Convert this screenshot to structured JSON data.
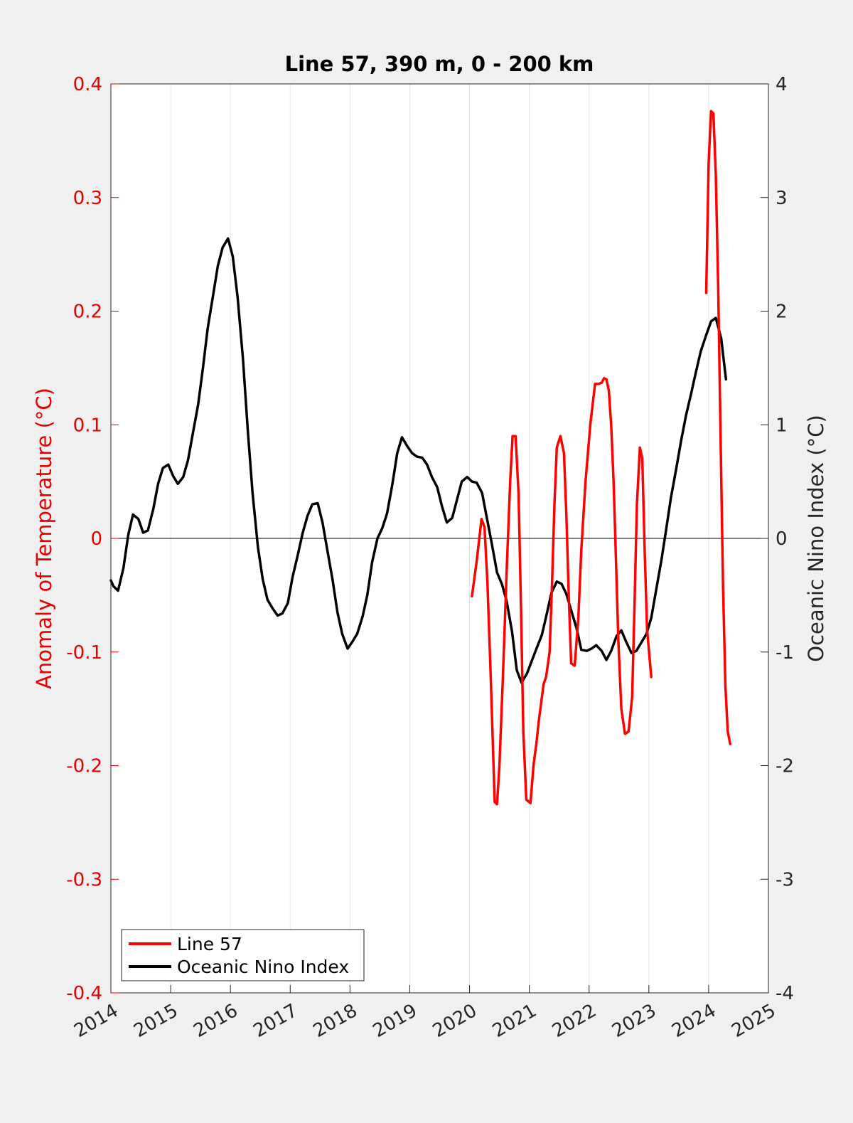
{
  "chart_data": {
    "type": "line",
    "title": "Line 57, 390 m, 0 - 200 km",
    "xlabel": "",
    "ylabel_left": "Anomaly of Temperature (°C)",
    "ylabel_right": "Oceanic Nino Index (°C)",
    "xlim": [
      2014,
      2025
    ],
    "ylim_left": [
      -0.4,
      0.4
    ],
    "ylim_right": [
      -4,
      4
    ],
    "x_ticks": [
      2014,
      2015,
      2016,
      2017,
      2018,
      2019,
      2020,
      2021,
      2022,
      2023,
      2024,
      2025
    ],
    "y_ticks_left": [
      "-0.4",
      "-0.3",
      "-0.2",
      "-0.1",
      "0",
      "0.1",
      "0.2",
      "0.3",
      "0.4"
    ],
    "y_ticks_right": [
      "-4",
      "-3",
      "-2",
      "-1",
      "0",
      "1",
      "2",
      "3",
      "4"
    ],
    "vertical_grid": true,
    "zero_line": true,
    "legend_position": "bottom-left",
    "colors": {
      "line57": "#ff0000",
      "oni": "#000000",
      "left_axis": "#e60000",
      "right_axis": "#262626"
    },
    "series": [
      {
        "name": "Line 57",
        "axis": "left",
        "segments": [
          {
            "x": [
              2020.04,
              2020.12,
              2020.2,
              2020.25,
              2020.3,
              2020.36,
              2020.42,
              2020.46,
              2020.5,
              2020.56,
              2020.62,
              2020.68,
              2020.72,
              2020.77,
              2020.82,
              2020.86,
              2020.9,
              2020.95,
              2021.02,
              2021.07,
              2021.12,
              2021.16,
              2021.24,
              2021.28,
              2021.34,
              2021.38,
              2021.42,
              2021.46,
              2021.52,
              2021.58,
              2021.62,
              2021.66,
              2021.7,
              2021.76,
              2021.82,
              2021.87,
              2021.94,
              2022.02,
              2022.1,
              2022.16,
              2022.21,
              2022.25,
              2022.29,
              2022.33,
              2022.37,
              2022.41,
              2022.45,
              2022.49,
              2022.54,
              2022.6,
              2022.66,
              2022.72,
              2022.76,
              2022.8,
              2022.85,
              2022.89,
              2022.93,
              2022.97,
              2023.04
            ],
            "y": [
              -0.051,
              -0.02,
              0.017,
              0.01,
              -0.04,
              -0.13,
              -0.232,
              -0.234,
              -0.2,
              -0.12,
              -0.03,
              0.05,
              0.09,
              0.09,
              0.04,
              -0.06,
              -0.17,
              -0.23,
              -0.233,
              -0.2,
              -0.18,
              -0.16,
              -0.128,
              -0.122,
              -0.1,
              -0.04,
              0.03,
              0.08,
              0.09,
              0.075,
              0.02,
              -0.05,
              -0.11,
              -0.112,
              -0.07,
              -0.01,
              0.05,
              0.1,
              0.136,
              0.136,
              0.137,
              0.141,
              0.14,
              0.13,
              0.1,
              0.05,
              -0.02,
              -0.09,
              -0.15,
              -0.172,
              -0.17,
              -0.14,
              -0.06,
              0.03,
              0.08,
              0.07,
              -0.01,
              -0.08,
              -0.122
            ]
          },
          {
            "x": [
              2023.96,
              2024.0,
              2024.04,
              2024.08,
              2024.12,
              2024.16,
              2024.2,
              2024.24,
              2024.28,
              2024.32,
              2024.36
            ],
            "y": [
              0.216,
              0.33,
              0.376,
              0.374,
              0.32,
              0.22,
              0.09,
              -0.04,
              -0.13,
              -0.17,
              -0.181
            ]
          }
        ]
      },
      {
        "name": "Oceanic Nino Index",
        "axis": "right",
        "x": [
          2014.0,
          2014.04,
          2014.08,
          2014.12,
          2014.21,
          2014.29,
          2014.37,
          2014.46,
          2014.54,
          2014.62,
          2014.71,
          2014.79,
          2014.87,
          2014.96,
          2015.04,
          2015.12,
          2015.21,
          2015.29,
          2015.37,
          2015.46,
          2015.54,
          2015.62,
          2015.71,
          2015.79,
          2015.87,
          2015.96,
          2016.04,
          2016.12,
          2016.21,
          2016.29,
          2016.37,
          2016.46,
          2016.54,
          2016.62,
          2016.71,
          2016.79,
          2016.87,
          2016.96,
          2017.04,
          2017.12,
          2017.21,
          2017.29,
          2017.37,
          2017.46,
          2017.54,
          2017.62,
          2017.71,
          2017.79,
          2017.87,
          2017.96,
          2018.04,
          2018.12,
          2018.21,
          2018.29,
          2018.37,
          2018.46,
          2018.54,
          2018.62,
          2018.71,
          2018.79,
          2018.87,
          2018.96,
          2019.04,
          2019.12,
          2019.21,
          2019.29,
          2019.37,
          2019.46,
          2019.54,
          2019.62,
          2019.71,
          2019.79,
          2019.87,
          2019.96,
          2020.04,
          2020.12,
          2020.21,
          2020.29,
          2020.37,
          2020.46,
          2020.54,
          2020.62,
          2020.71,
          2020.79,
          2020.87,
          2020.96,
          2021.04,
          2021.12,
          2021.21,
          2021.29,
          2021.37,
          2021.46,
          2021.54,
          2021.62,
          2021.71,
          2021.79,
          2021.87,
          2021.96,
          2022.04,
          2022.12,
          2022.21,
          2022.29,
          2022.37,
          2022.46,
          2022.54,
          2022.62,
          2022.71,
          2022.79,
          2022.87,
          2022.96,
          2023.04,
          2023.12,
          2023.21,
          2023.29,
          2023.37,
          2023.46,
          2023.54,
          2023.62,
          2023.71,
          2023.79,
          2023.87,
          2023.96,
          2024.04,
          2024.12,
          2024.21,
          2024.29
        ],
        "y": [
          -0.37,
          -0.42,
          -0.44,
          -0.46,
          -0.26,
          0.03,
          0.21,
          0.17,
          0.05,
          0.07,
          0.26,
          0.48,
          0.62,
          0.65,
          0.55,
          0.48,
          0.54,
          0.69,
          0.92,
          1.18,
          1.5,
          1.85,
          2.14,
          2.4,
          2.56,
          2.64,
          2.48,
          2.12,
          1.58,
          0.95,
          0.4,
          -0.08,
          -0.36,
          -0.54,
          -0.62,
          -0.68,
          -0.66,
          -0.57,
          -0.34,
          -0.16,
          0.05,
          0.2,
          0.3,
          0.31,
          0.14,
          -0.1,
          -0.37,
          -0.65,
          -0.84,
          -0.97,
          -0.91,
          -0.84,
          -0.69,
          -0.5,
          -0.21,
          0.0,
          0.09,
          0.22,
          0.48,
          0.75,
          0.89,
          0.81,
          0.75,
          0.72,
          0.71,
          0.65,
          0.54,
          0.45,
          0.28,
          0.14,
          0.18,
          0.34,
          0.5,
          0.54,
          0.5,
          0.49,
          0.4,
          0.18,
          -0.04,
          -0.3,
          -0.4,
          -0.55,
          -0.82,
          -1.16,
          -1.27,
          -1.19,
          -1.08,
          -0.97,
          -0.85,
          -0.67,
          -0.48,
          -0.38,
          -0.4,
          -0.49,
          -0.65,
          -0.79,
          -0.98,
          -0.99,
          -0.97,
          -0.94,
          -0.99,
          -1.07,
          -0.99,
          -0.86,
          -0.81,
          -0.91,
          -1.01,
          -0.99,
          -0.92,
          -0.84,
          -0.7,
          -0.46,
          -0.19,
          0.08,
          0.36,
          0.62,
          0.86,
          1.08,
          1.28,
          1.47,
          1.65,
          1.79,
          1.91,
          1.94,
          1.76,
          1.4
        ]
      }
    ]
  }
}
